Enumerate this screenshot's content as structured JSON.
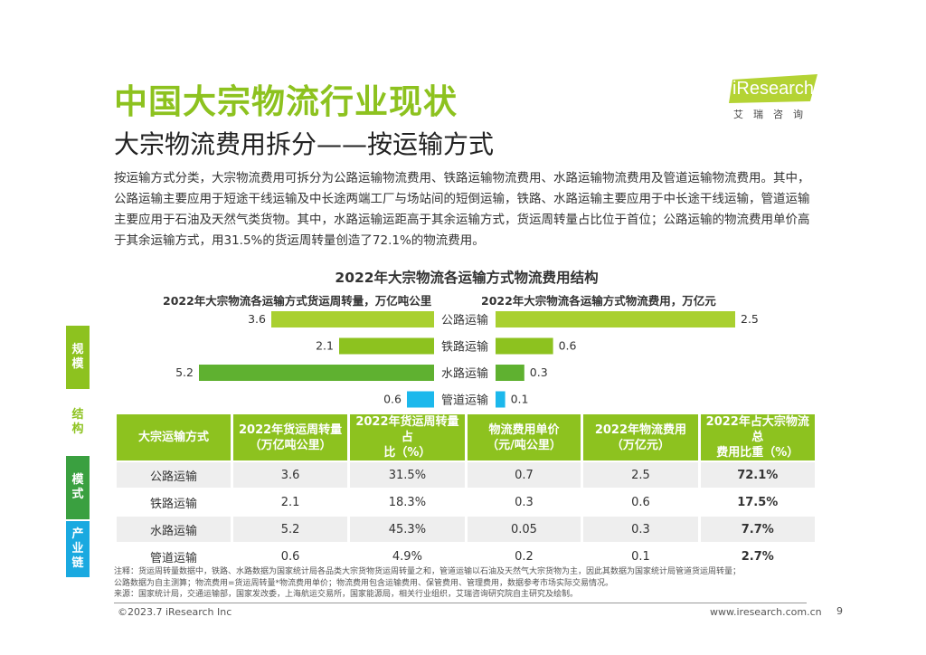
{
  "page": {
    "title": "中国大宗物流行业现状",
    "subtitle": "大宗物流费用拆分——按运输方式",
    "intro": "按运输方式分类，大宗物流费用可拆分为公路运输物流费用、铁路运输物流费用、水路运输物流费用及管道运输物流费用。其中，公路运输主要应用于短途干线运输及中长途两端工厂与场站间的短倒运输，铁路、水路运输主要应用于中长途干线运输，管道运输主要应用于石油及天然气类货物。其中，水路运输运距高于其余运输方式，货运周转量占比位于首位；公路运输的物流费用单价高于其余运输方式，用31.5%的货运周转量创造了72.1%的物流费用。"
  },
  "logo": {
    "text": "iResearch",
    "sub": "艾瑞咨询",
    "color": "#b4d334"
  },
  "side_tabs": [
    {
      "label": "规模",
      "color": "#8dc21f"
    },
    {
      "label": "结构",
      "color": "#ffffff"
    },
    {
      "label": "模式",
      "color": "#3aa040"
    },
    {
      "label": "产业链",
      "color": "#1aa9e0"
    }
  ],
  "chart_data": {
    "type": "bar",
    "title": "2022年大宗物流各运输方式物流费用结构",
    "categories": [
      "公路运输",
      "铁路运输",
      "水路运输",
      "管道运输"
    ],
    "colors": [
      "#a9d030",
      "#8dc21f",
      "#5fb130",
      "#1cb8ec"
    ],
    "series": [
      {
        "name": "2022年大宗物流各运输方式货运周转量，万亿吨公里",
        "values": [
          3.6,
          2.1,
          5.2,
          0.6
        ]
      },
      {
        "name": "2022年大宗物流各运输方式物流费用，万亿元",
        "values": [
          2.5,
          0.6,
          0.3,
          0.1
        ]
      }
    ]
  },
  "table": {
    "headers": [
      "大宗运输方式",
      "2022年货运周转量（万亿吨公里）",
      "2022年货运周转量占比（%）",
      "物流费用单价（元/吨公里）",
      "2022年物流费用（万亿元）",
      "2022年占大宗物流总费用比重（%）"
    ],
    "header_lines": [
      [
        "大宗运输方式"
      ],
      [
        "2022年货运周转量",
        "（万亿吨公里）"
      ],
      [
        "2022年货运周转量占",
        "比（%）"
      ],
      [
        "物流费用单价",
        "（元/吨公里）"
      ],
      [
        "2022年物流费用",
        "（万亿元）"
      ],
      [
        "2022年占大宗物流总",
        "费用比重（%）"
      ]
    ],
    "rows": [
      [
        "公路运输",
        "3.6",
        "31.5%",
        "0.7",
        "2.5",
        "72.1%"
      ],
      [
        "铁路运输",
        "2.1",
        "18.3%",
        "0.3",
        "0.6",
        "17.5%"
      ],
      [
        "水路运输",
        "5.2",
        "45.3%",
        "0.05",
        "0.3",
        "7.7%"
      ],
      [
        "管道运输",
        "0.6",
        "4.9%",
        "0.2",
        "0.1",
        "2.7%"
      ]
    ]
  },
  "notes": [
    "注释：货运周转量数据中，铁路、水路数据为国家统计局各品类大宗货物货运周转量之和，管道运输以石油及天然气大宗货物为主，因此其数据为国家统计局管道货运周转量；",
    "公路数据为自主测算；物流费用=货运周转量*物流费用单价；物流费用包含运输费用、保管费用、管理费用，数据参考市场实际交易情况。",
    "来源：国家统计局，交通运输部，国家发改委，上海航运交易所，国家能源局，相关行业组织，艾瑞咨询研究院自主研究及绘制。"
  ],
  "footer": {
    "copyright": "©2023.7 iResearch Inc",
    "site": "www.iresearch.com.cn",
    "page_number": "9"
  }
}
